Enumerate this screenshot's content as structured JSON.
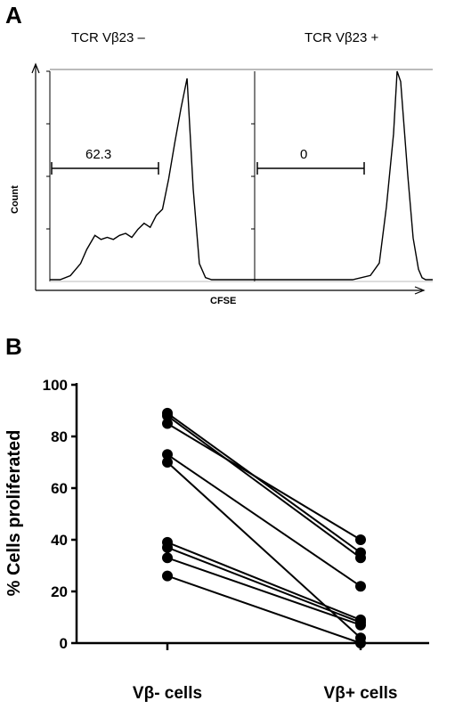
{
  "panel_a": {
    "letter": "A",
    "title_left": "TCR Vβ23 –",
    "title_right": "TCR Vβ23 +",
    "ylabel": "Count",
    "xlabel": "CFSE",
    "gate_left": "62.3",
    "gate_right": "0"
  },
  "panel_b": {
    "letter": "B"
  },
  "chart_data": [
    {
      "type": "line",
      "panel": "A-left",
      "title": "TCR Vβ23 –",
      "xlabel": "CFSE",
      "ylabel": "Count",
      "gate_value": 62.3,
      "x": [
        0,
        0.05,
        0.1,
        0.15,
        0.18,
        0.22,
        0.25,
        0.28,
        0.31,
        0.34,
        0.37,
        0.4,
        0.43,
        0.46,
        0.49,
        0.52,
        0.55,
        0.58,
        0.61,
        0.64,
        0.67,
        0.7,
        0.73,
        0.76,
        0.79,
        0.82,
        0.85,
        0.88,
        0.91,
        0.94,
        0.97,
        1.0
      ],
      "values": [
        0,
        0,
        0.02,
        0.08,
        0.15,
        0.22,
        0.2,
        0.21,
        0.2,
        0.22,
        0.23,
        0.21,
        0.25,
        0.28,
        0.26,
        0.32,
        0.35,
        0.5,
        0.68,
        0.85,
        1.0,
        0.45,
        0.08,
        0.01,
        0,
        0,
        0,
        0,
        0,
        0,
        0,
        0
      ]
    },
    {
      "type": "line",
      "panel": "A-right",
      "title": "TCR Vβ23 +",
      "xlabel": "CFSE",
      "ylabel": "Count",
      "gate_value": 0,
      "x": [
        0,
        0.1,
        0.2,
        0.3,
        0.4,
        0.55,
        0.65,
        0.7,
        0.74,
        0.78,
        0.8,
        0.82,
        0.86,
        0.89,
        0.92,
        0.94,
        0.96,
        1.0
      ],
      "values": [
        0,
        0,
        0,
        0,
        0,
        0,
        0.02,
        0.08,
        0.35,
        0.7,
        1.0,
        0.95,
        0.5,
        0.2,
        0.05,
        0.01,
        0,
        0
      ]
    },
    {
      "type": "scatter",
      "panel": "B",
      "categories": [
        "Vβ- cells",
        "Vβ+ cells"
      ],
      "ylabel": "% Cells proliferated",
      "ylim": [
        0,
        100
      ],
      "yticks": [
        "0",
        "20",
        "40",
        "60",
        "80",
        "100"
      ],
      "pairs": [
        {
          "before": 89,
          "after": 35
        },
        {
          "before": 88,
          "after": 33
        },
        {
          "before": 85,
          "after": 40
        },
        {
          "before": 73,
          "after": 22
        },
        {
          "before": 70,
          "after": 2
        },
        {
          "before": 39,
          "after": 9
        },
        {
          "before": 37,
          "after": 8
        },
        {
          "before": 33,
          "after": 7
        },
        {
          "before": 26,
          "after": 0
        }
      ]
    }
  ]
}
